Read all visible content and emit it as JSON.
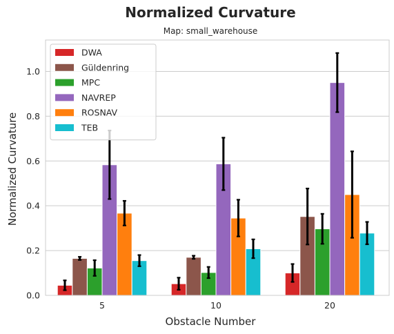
{
  "chart_data": {
    "type": "bar",
    "title": "Normalized Curvature",
    "subtitle": "Map: small_warehouse",
    "xlabel": "Obstacle Number",
    "ylabel": "Normalized Curvature",
    "categories": [
      "5",
      "10",
      "20"
    ],
    "ylim": [
      0,
      1.14
    ],
    "yticks": [
      "0.0",
      "0.2",
      "0.4",
      "0.6",
      "0.8",
      "1.0"
    ],
    "grid": true,
    "legend_position": "upper-left",
    "series": [
      {
        "name": "DWA",
        "color": "#d62728",
        "values": [
          0.045,
          0.052,
          0.1
        ],
        "errors": [
          0.022,
          0.027,
          0.04
        ]
      },
      {
        "name": "Güldenring",
        "color": "#8c564b",
        "values": [
          0.165,
          0.17,
          0.352
        ],
        "errors": [
          0.007,
          0.007,
          0.125
        ]
      },
      {
        "name": "MPC",
        "color": "#2ca02c",
        "values": [
          0.122,
          0.102,
          0.297
        ],
        "errors": [
          0.035,
          0.025,
          0.067
        ]
      },
      {
        "name": "NAVREP",
        "color": "#9467bd",
        "values": [
          0.583,
          0.587,
          0.95
        ],
        "errors": [
          0.153,
          0.117,
          0.132
        ]
      },
      {
        "name": "ROSNAV",
        "color": "#ff7f0e",
        "values": [
          0.367,
          0.345,
          0.45
        ],
        "errors": [
          0.055,
          0.082,
          0.193
        ]
      },
      {
        "name": "TEB",
        "color": "#17becf",
        "values": [
          0.155,
          0.208,
          0.278
        ],
        "errors": [
          0.025,
          0.042,
          0.05
        ]
      }
    ]
  }
}
